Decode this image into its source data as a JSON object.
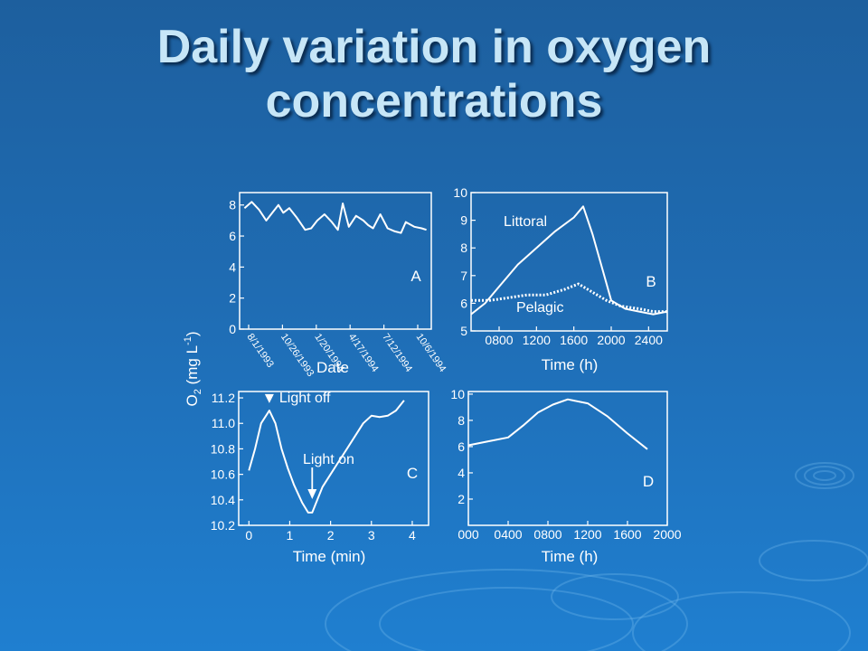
{
  "slide": {
    "title_line1": "Daily variation in oxygen",
    "title_line2": "concentrations"
  },
  "colors": {
    "line": "#ffffff",
    "title": "#c7e6f7"
  },
  "shared_ylabel": {
    "main": "O",
    "sub": "2",
    "unit": " (mg L",
    "sup": "-1",
    "close": ")"
  },
  "chart_data": [
    {
      "panel": "A",
      "type": "line",
      "xlabel": "Date",
      "ylim": [
        0,
        8.8
      ],
      "yticks": [
        0,
        2,
        4,
        6,
        8
      ],
      "xticklabels": [
        "8/1/1993",
        "10/26/1993",
        "1/20/1994",
        "4/17/1994",
        "7/12/1994",
        "10/6/1994"
      ],
      "x": [
        0,
        0.3,
        0.6,
        0.9,
        1.15,
        1.4,
        1.6,
        1.85,
        2.15,
        2.5,
        2.75,
        3.0,
        3.3,
        3.6,
        3.85,
        4.05,
        4.3,
        4.6,
        4.9,
        5.1,
        5.3,
        5.6,
        5.9,
        6.2,
        6.45,
        6.65,
        7.0,
        7.3,
        7.5
      ],
      "series": [
        {
          "values": [
            7.8,
            8.2,
            7.7,
            7.0,
            7.5,
            8.0,
            7.5,
            7.8,
            7.2,
            6.4,
            6.5,
            7.0,
            7.4,
            6.9,
            6.4,
            8.1,
            6.6,
            7.3,
            7.0,
            6.7,
            6.5,
            7.4,
            6.5,
            6.3,
            6.2,
            6.9,
            6.6,
            6.5,
            6.4
          ]
        }
      ]
    },
    {
      "panel": "B",
      "type": "line",
      "xlabel": "Time (h)",
      "ylim": [
        5,
        10
      ],
      "yticks": [
        5,
        6,
        7,
        8,
        9,
        10
      ],
      "xticklabels": [
        "0800",
        "1200",
        "1600",
        "2000",
        "2400"
      ],
      "xtickvalues": [
        800,
        1200,
        1600,
        2000,
        2400
      ],
      "xlim": [
        500,
        2600
      ],
      "series": [
        {
          "name": "Littoral",
          "style": "solid",
          "x": [
            500,
            650,
            800,
            1000,
            1200,
            1400,
            1600,
            1700,
            1800,
            1900,
            2000,
            2150,
            2300,
            2450,
            2600
          ],
          "values": [
            5.6,
            6.0,
            6.6,
            7.4,
            8.0,
            8.6,
            9.1,
            9.5,
            8.5,
            7.3,
            6.1,
            5.8,
            5.7,
            5.6,
            5.7
          ]
        },
        {
          "name": "Pelagic",
          "style": "dotted",
          "x": [
            500,
            700,
            900,
            1100,
            1300,
            1500,
            1650,
            1800,
            1950,
            2100,
            2300,
            2450,
            2600
          ],
          "values": [
            6.1,
            6.1,
            6.2,
            6.3,
            6.3,
            6.5,
            6.7,
            6.4,
            6.1,
            5.9,
            5.8,
            5.7,
            5.7
          ]
        }
      ]
    },
    {
      "panel": "C",
      "type": "line",
      "xlabel": "Time (min)",
      "xlim": [
        -0.25,
        4.4
      ],
      "ylim": [
        10.2,
        11.25
      ],
      "yticks": [
        10.2,
        10.4,
        10.6,
        10.8,
        11.0,
        11.2
      ],
      "xticks": [
        0,
        1,
        2,
        3,
        4
      ],
      "x": [
        0.0,
        0.15,
        0.3,
        0.5,
        0.65,
        0.8,
        0.95,
        1.1,
        1.3,
        1.45,
        1.55,
        1.65,
        1.8,
        2.0,
        2.2,
        2.4,
        2.6,
        2.8,
        3.0,
        3.2,
        3.4,
        3.6,
        3.8
      ],
      "series": [
        {
          "values": [
            10.63,
            10.8,
            11.0,
            11.1,
            11.0,
            10.8,
            10.65,
            10.52,
            10.38,
            10.3,
            10.3,
            10.38,
            10.5,
            10.6,
            10.7,
            10.8,
            10.9,
            11.0,
            11.06,
            11.05,
            11.06,
            11.1,
            11.18
          ]
        }
      ],
      "annotations": [
        {
          "text": "Light off",
          "x": 0.5,
          "y": 11.1
        },
        {
          "text": "Light on",
          "x": 1.55,
          "y": 10.31
        }
      ]
    },
    {
      "panel": "D",
      "type": "line",
      "xlabel": "Time (h)",
      "xlim": [
        0,
        2000
      ],
      "ylim": [
        0,
        10.2
      ],
      "yticks": [
        2,
        4,
        6,
        8,
        10
      ],
      "xticklabels": [
        "000",
        "0400",
        "0800",
        "1200",
        "1600",
        "2000"
      ],
      "xtickvalues": [
        0,
        400,
        800,
        1200,
        1600,
        2000
      ],
      "x": [
        0,
        200,
        400,
        550,
        700,
        850,
        1000,
        1200,
        1400,
        1600,
        1800
      ],
      "series": [
        {
          "values": [
            6.1,
            6.4,
            6.7,
            7.6,
            8.6,
            9.2,
            9.6,
            9.3,
            8.3,
            7.0,
            5.8
          ]
        }
      ]
    }
  ]
}
